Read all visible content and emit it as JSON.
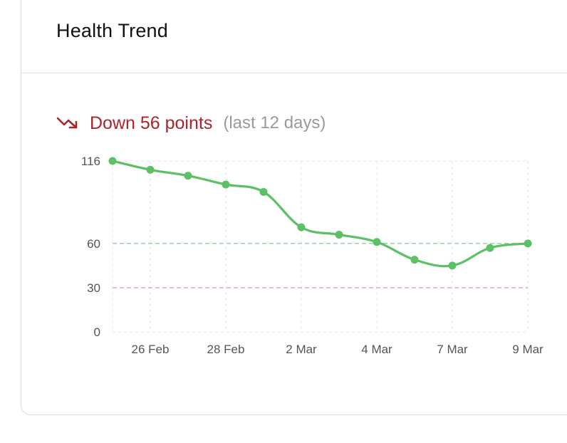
{
  "card": {
    "title": "Health Trend"
  },
  "trend": {
    "icon": "trending-down-icon",
    "text": "Down 56 points",
    "period": "(last 12 days)",
    "color": "#a8262b"
  },
  "chart_data": {
    "type": "line",
    "x": [
      "25 Feb",
      "26 Feb",
      "27 Feb",
      "28 Feb",
      "1 Mar",
      "2 Mar",
      "3 Mar",
      "4 Mar",
      "5 Mar",
      "7 Mar",
      "8 Mar",
      "9 Mar"
    ],
    "x_ticks": [
      "26 Feb",
      "28 Feb",
      "2 Mar",
      "4 Mar",
      "7 Mar",
      "9 Mar"
    ],
    "series": [
      {
        "values": [
          116,
          110,
          106,
          100,
          95,
          71,
          66,
          61,
          49,
          45,
          57,
          60
        ],
        "color": "#5cc065"
      }
    ],
    "y_ticks": [
      0,
      30,
      60,
      116
    ],
    "ylim": [
      0,
      116
    ],
    "reference_lines": [
      {
        "value": 60,
        "color": "#8fd49a",
        "style": "dashed"
      },
      {
        "value": 30,
        "color": "#e8a0a0",
        "style": "dashed"
      }
    ],
    "grid": true,
    "title": "",
    "xlabel": "",
    "ylabel": ""
  }
}
